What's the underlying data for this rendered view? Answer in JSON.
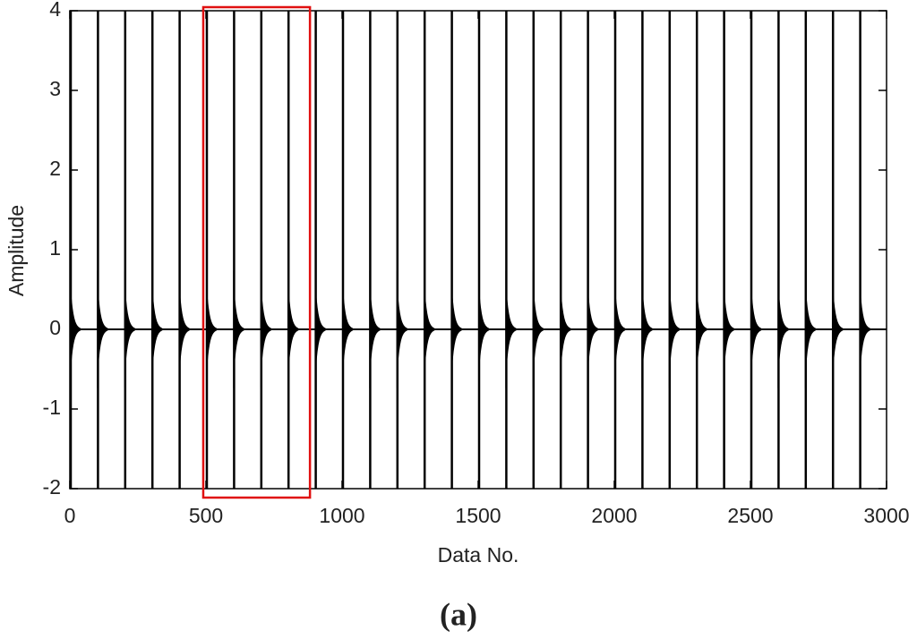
{
  "chart_data": {
    "type": "impulse",
    "xlabel": "Data No.",
    "ylabel": "Amplitude",
    "caption": "(a)",
    "x": [
      0,
      100,
      200,
      300,
      400,
      500,
      600,
      700,
      800,
      900,
      1000,
      1100,
      1200,
      1300,
      1400,
      1500,
      1600,
      1700,
      1800,
      1900,
      2000,
      2100,
      2200,
      2300,
      2400,
      2500,
      2600,
      2700,
      2800,
      2900
    ],
    "high": [
      4,
      4,
      4,
      4,
      4,
      4,
      4,
      4,
      4,
      4,
      4,
      4,
      4,
      4,
      4,
      4,
      4,
      4,
      4,
      4,
      4,
      4,
      4,
      4,
      4,
      4,
      4,
      4,
      4,
      4
    ],
    "low": [
      -2,
      -2,
      -2,
      -2,
      -2,
      -2,
      -2,
      -2,
      -2,
      -2,
      -2,
      -2,
      -2,
      -2,
      -2,
      -2,
      -2,
      -2,
      -2,
      -2,
      -2,
      -2,
      -2,
      -2,
      -2,
      -2,
      -2,
      -2,
      -2,
      -2
    ],
    "ring": 0.75,
    "color": "#000000",
    "xlim": [
      0,
      3000
    ],
    "xticks": [
      0,
      500,
      1000,
      1500,
      2000,
      2500,
      3000
    ],
    "ylim": [
      -2,
      4
    ],
    "yticks": [
      -2,
      -1,
      0,
      1,
      2,
      3,
      4
    ],
    "highlight": {
      "xlim": [
        490,
        882
      ],
      "color": "#e01010"
    }
  }
}
